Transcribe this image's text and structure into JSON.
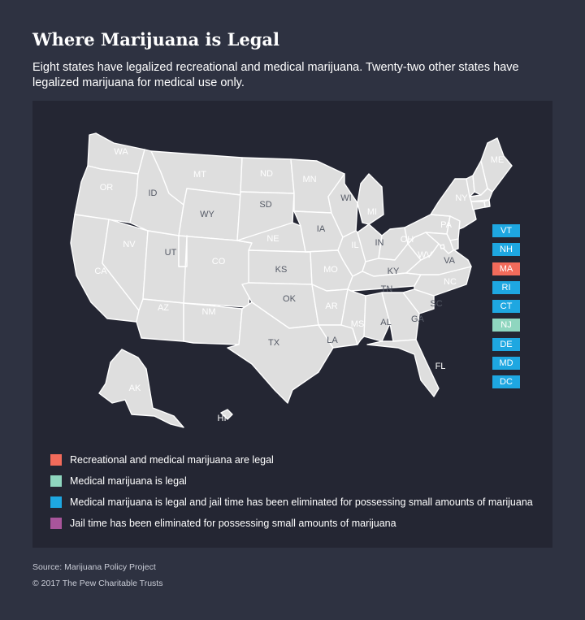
{
  "title": "Where Marijuana is Legal",
  "subtitle": "Eight states have legalized recreational and medical marijuana. Twenty-two other states have legalized marijuana for medical use only.",
  "colors": {
    "recreational": "#f26b5b",
    "medical": "#8fd6bf",
    "medical_decrim": "#1ea7e1",
    "decrim": "#a8559b",
    "none": "#dedede",
    "panel": "#242633",
    "page": "#2e3241"
  },
  "legend": [
    {
      "category": "recreational",
      "label": "Recreational and medical marijuana are legal"
    },
    {
      "category": "medical",
      "label": "Medical marijuana is legal"
    },
    {
      "category": "medical_decrim",
      "label": "Medical marijuana is legal and jail time has been eliminated for possessing small amounts of marijuana"
    },
    {
      "category": "decrim",
      "label": "Jail time has been eliminated for possessing small amounts of marijuana"
    }
  ],
  "states": [
    {
      "abbr": "WA",
      "category": "recreational"
    },
    {
      "abbr": "OR",
      "category": "recreational"
    },
    {
      "abbr": "CA",
      "category": "recreational"
    },
    {
      "abbr": "NV",
      "category": "recreational"
    },
    {
      "abbr": "ID",
      "category": "none"
    },
    {
      "abbr": "MT",
      "category": "medical"
    },
    {
      "abbr": "WY",
      "category": "none"
    },
    {
      "abbr": "UT",
      "category": "none"
    },
    {
      "abbr": "CO",
      "category": "recreational"
    },
    {
      "abbr": "AZ",
      "category": "medical"
    },
    {
      "abbr": "NM",
      "category": "medical"
    },
    {
      "abbr": "ND",
      "category": "medical"
    },
    {
      "abbr": "SD",
      "category": "none"
    },
    {
      "abbr": "NE",
      "category": "decrim"
    },
    {
      "abbr": "KS",
      "category": "none"
    },
    {
      "abbr": "OK",
      "category": "none"
    },
    {
      "abbr": "TX",
      "category": "none"
    },
    {
      "abbr": "MN",
      "category": "medical_decrim"
    },
    {
      "abbr": "IA",
      "category": "none"
    },
    {
      "abbr": "MO",
      "category": "decrim"
    },
    {
      "abbr": "AR",
      "category": "medical"
    },
    {
      "abbr": "LA",
      "category": "none"
    },
    {
      "abbr": "WI",
      "category": "none"
    },
    {
      "abbr": "IL",
      "category": "medical_decrim"
    },
    {
      "abbr": "MI",
      "category": "medical"
    },
    {
      "abbr": "IN",
      "category": "none"
    },
    {
      "abbr": "OH",
      "category": "medical_decrim"
    },
    {
      "abbr": "KY",
      "category": "none"
    },
    {
      "abbr": "TN",
      "category": "none"
    },
    {
      "abbr": "MS",
      "category": "decrim"
    },
    {
      "abbr": "AL",
      "category": "none"
    },
    {
      "abbr": "GA",
      "category": "none"
    },
    {
      "abbr": "FL",
      "category": "medical"
    },
    {
      "abbr": "SC",
      "category": "none"
    },
    {
      "abbr": "NC",
      "category": "decrim"
    },
    {
      "abbr": "VA",
      "category": "none"
    },
    {
      "abbr": "WV",
      "category": "medical"
    },
    {
      "abbr": "PA",
      "category": "medical"
    },
    {
      "abbr": "NY",
      "category": "medical_decrim"
    },
    {
      "abbr": "ME",
      "category": "recreational"
    },
    {
      "abbr": "AK",
      "category": "recreational"
    },
    {
      "abbr": "HI",
      "category": "medical"
    }
  ],
  "small_states": [
    {
      "abbr": "VT",
      "category": "medical_decrim"
    },
    {
      "abbr": "NH",
      "category": "medical_decrim"
    },
    {
      "abbr": "MA",
      "category": "recreational"
    },
    {
      "abbr": "RI",
      "category": "medical_decrim"
    },
    {
      "abbr": "CT",
      "category": "medical_decrim"
    },
    {
      "abbr": "NJ",
      "category": "medical"
    },
    {
      "abbr": "DE",
      "category": "medical_decrim"
    },
    {
      "abbr": "MD",
      "category": "medical_decrim"
    },
    {
      "abbr": "DC",
      "category": "medical_decrim"
    }
  ],
  "footer": {
    "source": "Source: Marijuana Policy Project",
    "copyright": "© 2017 The Pew Charitable Trusts"
  }
}
